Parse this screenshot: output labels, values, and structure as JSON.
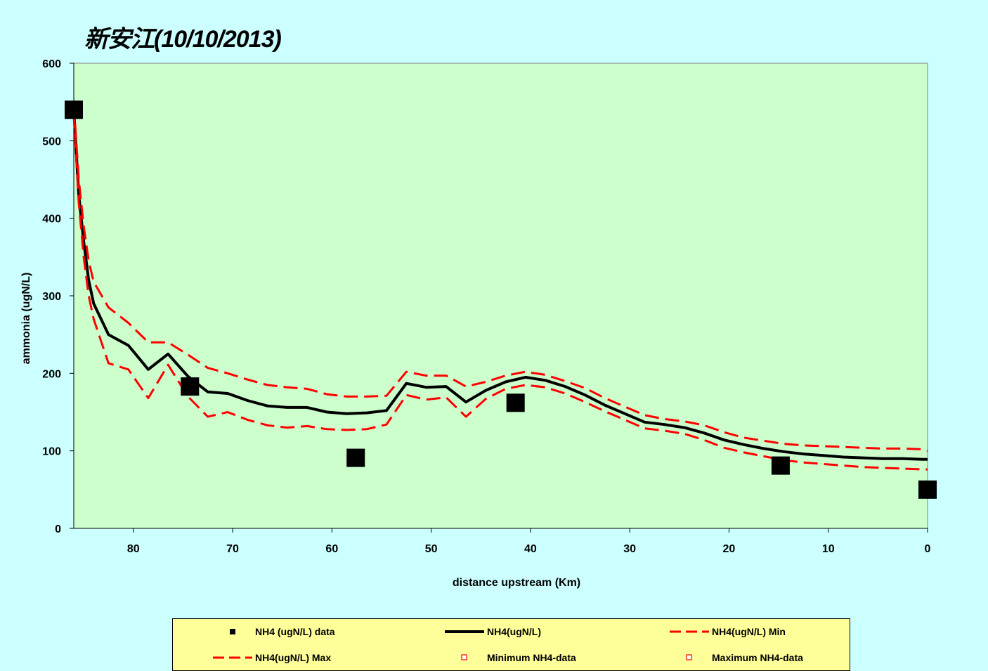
{
  "title": "新安江(10/10/2013)",
  "chart_data": {
    "type": "line",
    "title": "新安江(10/10/2013)",
    "xlabel": "distance upstream (Km)",
    "ylabel": "ammonia (ugN/L)",
    "xlim": [
      86,
      0
    ],
    "x_reversed": true,
    "ylim": [
      0,
      600
    ],
    "xticks": [
      80,
      70,
      60,
      50,
      40,
      30,
      20,
      10,
      0
    ],
    "yticks": [
      0,
      100,
      200,
      300,
      400,
      500,
      600
    ],
    "grid": false,
    "legend_position": "bottom",
    "colors": {
      "plot_background": "#ccffcc",
      "page_background": "#ccffff",
      "legend_background": "#ffff99",
      "model_line": "#000000",
      "min_max_lines": "#ff0000",
      "data_markers": "#000000"
    },
    "series": [
      {
        "name": "NH4 (ugN/L) data",
        "style": "marker-square",
        "color": "#000000",
        "x": [
          86,
          74.3,
          57.6,
          41.5,
          14.8,
          0
        ],
        "y": [
          540,
          183,
          91,
          162,
          81,
          50
        ]
      },
      {
        "name": "NH4(ugN/L)",
        "style": "solid",
        "color": "#000000",
        "x": [
          86,
          85.5,
          85,
          84.5,
          84,
          82.5,
          80.5,
          78.5,
          76.5,
          74.5,
          72.5,
          70.5,
          68.5,
          66.5,
          64.5,
          62.5,
          60.5,
          58.5,
          56.5,
          54.5,
          52.5,
          50.5,
          48.5,
          46.5,
          44.5,
          42.5,
          40.5,
          38.5,
          36.5,
          34.5,
          32.5,
          30.5,
          28.5,
          26.5,
          24.5,
          22.5,
          20.5,
          18.5,
          16.5,
          14.5,
          12.5,
          10.5,
          8.5,
          6.5,
          4.5,
          2.5,
          0.5,
          0
        ],
        "y": [
          540,
          430,
          370,
          320,
          290,
          250,
          236,
          205,
          225,
          196,
          176,
          174,
          165,
          158,
          156,
          156,
          150,
          148,
          149,
          152,
          187,
          182,
          183,
          163,
          178,
          189,
          195,
          191,
          183,
          172,
          159,
          148,
          137,
          134,
          130,
          123,
          114,
          108,
          103,
          99,
          96,
          94,
          92,
          91,
          90,
          90,
          89,
          89
        ]
      },
      {
        "name": "NH4(ugN/L) Min",
        "style": "dashed",
        "color": "#ff0000",
        "x": [
          86,
          85.5,
          85,
          84.5,
          84,
          82.5,
          80.5,
          78.5,
          76.5,
          74.5,
          72.5,
          70.5,
          68.5,
          66.5,
          64.5,
          62.5,
          60.5,
          58.5,
          56.5,
          54.5,
          52.5,
          50.5,
          48.5,
          46.5,
          44.5,
          42.5,
          40.5,
          38.5,
          36.5,
          34.5,
          32.5,
          30.5,
          28.5,
          26.5,
          24.5,
          22.5,
          20.5,
          18.5,
          16.5,
          14.5,
          12.5,
          10.5,
          8.5,
          6.5,
          4.5,
          2.5,
          0.5,
          0
        ],
        "y": [
          535,
          420,
          350,
          300,
          270,
          213,
          205,
          168,
          211,
          170,
          144,
          150,
          140,
          133,
          130,
          132,
          128,
          127,
          128,
          134,
          172,
          166,
          169,
          144,
          167,
          180,
          185,
          182,
          174,
          163,
          151,
          140,
          129,
          126,
          122,
          114,
          104,
          98,
          93,
          88,
          85,
          83,
          81,
          79,
          78,
          77,
          76,
          76
        ]
      },
      {
        "name": "NH4(ugN/L) Max",
        "style": "dashed",
        "color": "#ff0000",
        "x": [
          86,
          85.5,
          85,
          84.5,
          84,
          82.5,
          80.5,
          78.5,
          76.5,
          74.5,
          72.5,
          70.5,
          68.5,
          66.5,
          64.5,
          62.5,
          60.5,
          58.5,
          56.5,
          54.5,
          52.5,
          50.5,
          48.5,
          46.5,
          44.5,
          42.5,
          40.5,
          38.5,
          36.5,
          34.5,
          32.5,
          30.5,
          28.5,
          26.5,
          24.5,
          22.5,
          20.5,
          18.5,
          16.5,
          14.5,
          12.5,
          10.5,
          8.5,
          6.5,
          4.5,
          2.5,
          0.5,
          0
        ],
        "y": [
          548,
          450,
          390,
          345,
          318,
          285,
          265,
          240,
          240,
          224,
          207,
          200,
          192,
          185,
          182,
          180,
          173,
          170,
          170,
          171,
          202,
          197,
          197,
          183,
          189,
          197,
          202,
          198,
          190,
          181,
          168,
          157,
          146,
          141,
          138,
          133,
          124,
          117,
          113,
          109,
          107,
          106,
          105,
          104,
          103,
          103,
          102,
          100
        ]
      },
      {
        "name": "Minimum NH4-data",
        "style": "marker-open-square",
        "color": "#ff0000",
        "x": [],
        "y": []
      },
      {
        "name": "Maximum NH4-data",
        "style": "marker-open-square",
        "color": "#ff0000",
        "x": [],
        "y": []
      }
    ]
  },
  "legend": {
    "items": [
      {
        "label": "NH4 (ugN/L) data",
        "symbol": "marker-square"
      },
      {
        "label": "NH4(ugN/L)",
        "symbol": "solid"
      },
      {
        "label": "NH4(ugN/L) Min",
        "symbol": "dashed"
      },
      {
        "label": "NH4(ugN/L) Max",
        "symbol": "dashed"
      },
      {
        "label": "Minimum NH4-data",
        "symbol": "marker-open-square"
      },
      {
        "label": "Maximum NH4-data",
        "symbol": "marker-open-square"
      }
    ]
  }
}
